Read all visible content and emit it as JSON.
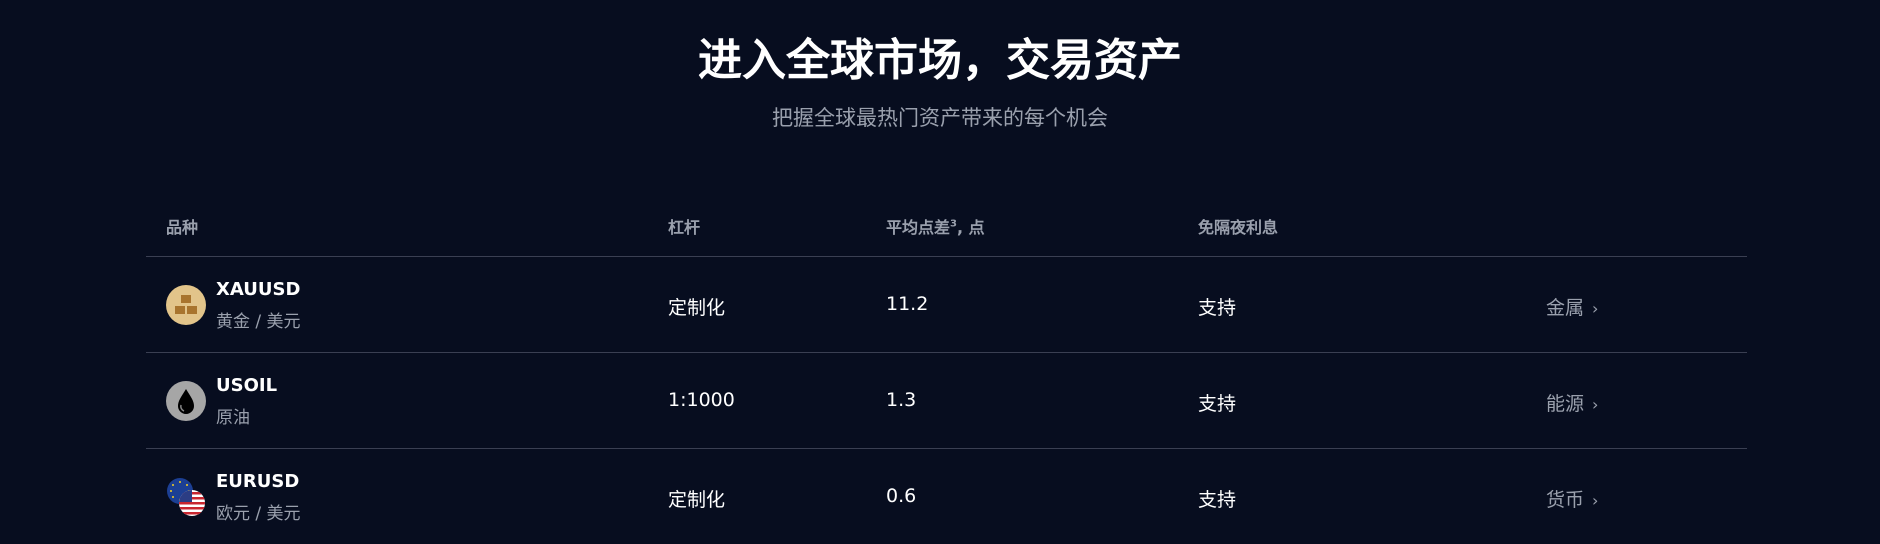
{
  "header": {
    "title": "进入全球市场，交易资产",
    "subtitle": "把握全球最热门资产带来的每个机会"
  },
  "table": {
    "columns": {
      "instrument": "品种",
      "leverage": "杠杆",
      "spread": "平均点差",
      "spread_sup": "3",
      "spread_unit": ", 点",
      "swap_free": "免隔夜利息"
    },
    "rows": [
      {
        "symbol": "XAUUSD",
        "name": "黄金 / 美元",
        "icon": "gold-bars-icon",
        "leverage": "定制化",
        "spread": "11.2",
        "swap_free": "支持",
        "category": "金属"
      },
      {
        "symbol": "USOIL",
        "name": "原油",
        "icon": "oil-drop-icon",
        "leverage": "1:1000",
        "spread": "1.3",
        "swap_free": "支持",
        "category": "能源"
      },
      {
        "symbol": "EURUSD",
        "name": "欧元 / 美元",
        "icon": "eu-us-flags-icon",
        "leverage": "定制化",
        "spread": "0.6",
        "swap_free": "支持",
        "category": "货币"
      }
    ]
  },
  "colors": {
    "background": "#070d1f",
    "muted": "#9aa0ad",
    "gold": "#e2c48a"
  }
}
